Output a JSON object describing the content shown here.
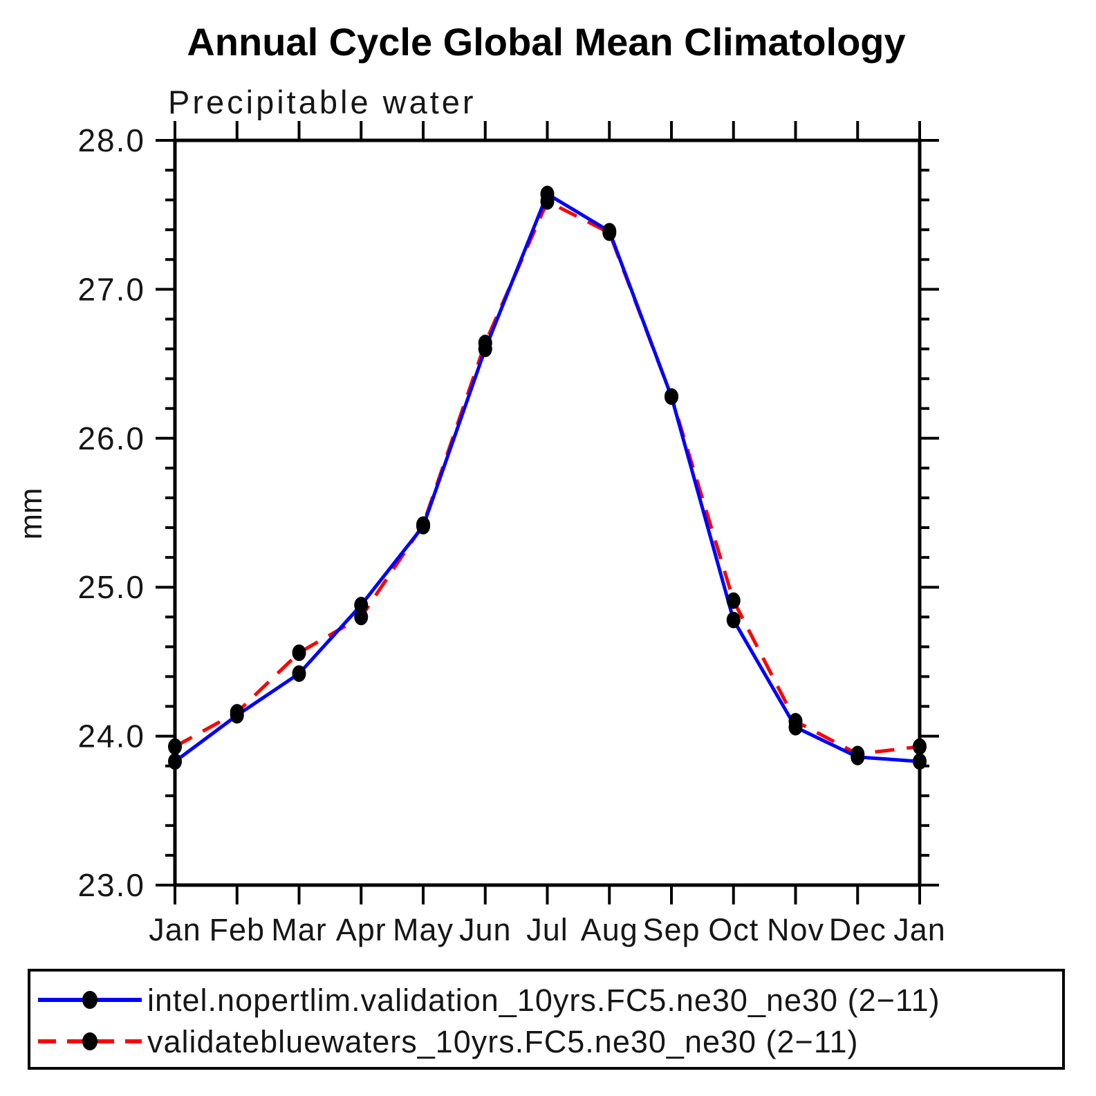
{
  "title": "Annual Cycle Global Mean Climatology",
  "subtitle": "Precipitable water",
  "y_axis": {
    "label": "mm",
    "tick_labels": [
      "23.0",
      "24.0",
      "25.0",
      "26.0",
      "27.0",
      "28.0"
    ],
    "min": 23.0,
    "max": 28.0,
    "major_step": 1.0,
    "minor_step": 0.2
  },
  "x_axis": {
    "categories": [
      "Jan",
      "Feb",
      "Mar",
      "Apr",
      "May",
      "Jun",
      "Jul",
      "Aug",
      "Sep",
      "Oct",
      "Nov",
      "Dec",
      "Jan"
    ]
  },
  "colors": {
    "series1": "#0000ff",
    "series2": "#ff0000",
    "marker": "#000000",
    "axis": "#000000",
    "background": "#ffffff"
  },
  "chart_data": {
    "type": "line",
    "title": "Annual Cycle Global Mean Climatology",
    "subtitle": "Precipitable water",
    "ylabel": "mm",
    "xlabel": "",
    "ylim": [
      23.0,
      28.0
    ],
    "y_major_step": 1.0,
    "y_minor_step": 0.2,
    "y_tick_labels": [
      "23.0",
      "24.0",
      "25.0",
      "26.0",
      "27.0",
      "28.0"
    ],
    "grid": false,
    "legend_position": "bottom",
    "categories": [
      "Jan",
      "Feb",
      "Mar",
      "Apr",
      "May",
      "Jun",
      "Jul",
      "Aug",
      "Sep",
      "Oct",
      "Nov",
      "Dec",
      "Jan"
    ],
    "series": [
      {
        "name": "intel.nopertlim.validation_10yrs.FC5.ne30_ne30 (2−11)",
        "color": "#0000ff",
        "line_style": "solid",
        "marker": "black-dot",
        "values": [
          23.83,
          24.14,
          24.42,
          24.88,
          25.41,
          26.6,
          27.64,
          27.39,
          26.28,
          24.78,
          24.06,
          23.86,
          23.83
        ]
      },
      {
        "name": "validatebluewaters_10yrs.FC5.ne30_ne30 (2−11)",
        "color": "#ff0000",
        "line_style": "dashed",
        "marker": "black-dot",
        "values": [
          23.93,
          24.16,
          24.56,
          24.8,
          25.42,
          26.64,
          27.59,
          27.38,
          26.28,
          24.91,
          24.1,
          23.88,
          23.93
        ]
      }
    ]
  }
}
